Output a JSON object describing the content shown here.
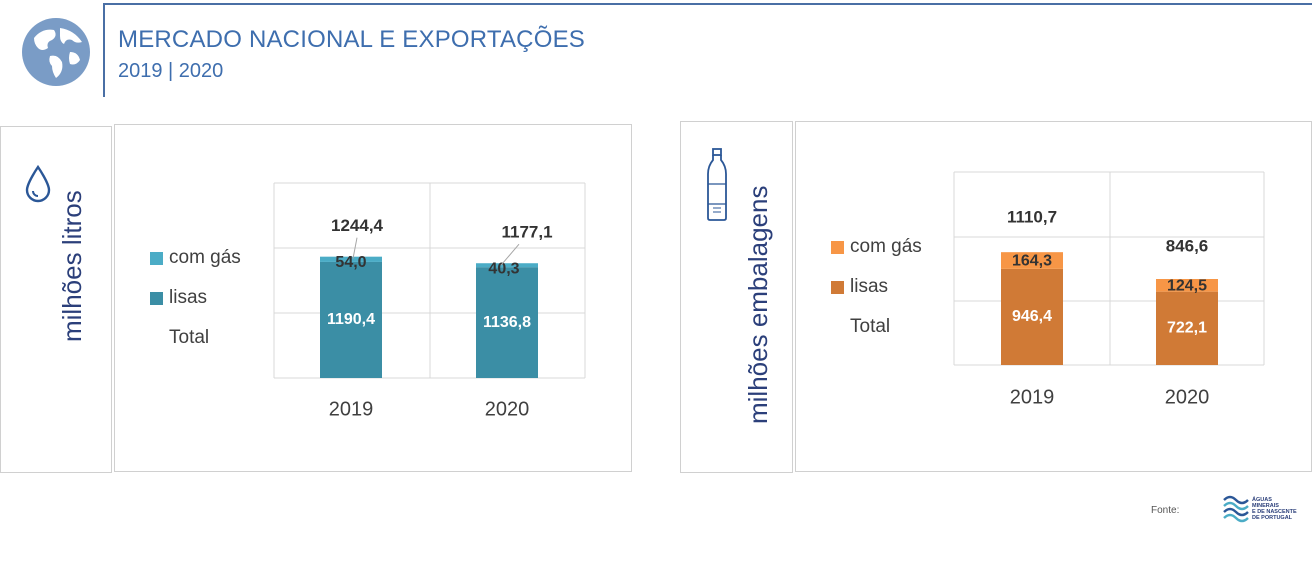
{
  "header": {
    "title": "MERCADO NACIONAL E EXPORTAÇÕES",
    "subtitle": "2019 | 2020"
  },
  "footer": {
    "source_label": "Fonte:",
    "logo_lines": [
      "ÁGUAS",
      "MINERAIS",
      "E DE NASCENTE",
      "DE PORTUGAL"
    ]
  },
  "chart_data": [
    {
      "type": "bar",
      "stacked": true,
      "ylabel": "milhões litros",
      "categories": [
        "2019",
        "2020"
      ],
      "series": [
        {
          "name": "lisas",
          "values": [
            1190.4,
            1136.8
          ],
          "labels": [
            "1190,4",
            "1136,8"
          ],
          "color": "#3b8ea5"
        },
        {
          "name": "com gás",
          "values": [
            54.0,
            40.3
          ],
          "labels": [
            "54,0",
            "40,3"
          ],
          "color": "#4bacc6"
        }
      ],
      "totals": [
        1244.4,
        1177.1
      ],
      "total_labels": [
        "1244,4",
        "1177,1"
      ],
      "legend": [
        "com gás",
        "lisas",
        "Total"
      ],
      "legend_position": "left",
      "ylim": [
        0,
        2000
      ],
      "grid": true
    },
    {
      "type": "bar",
      "stacked": true,
      "ylabel": "milhões embalagens",
      "categories": [
        "2019",
        "2020"
      ],
      "series": [
        {
          "name": "lisas",
          "values": [
            946.4,
            722.1
          ],
          "labels": [
            "946,4",
            "722,1"
          ],
          "color": "#d07a36"
        },
        {
          "name": "com gás",
          "values": [
            164.3,
            124.5
          ],
          "labels": [
            "164,3",
            "124,5"
          ],
          "color": "#f79646"
        }
      ],
      "totals": [
        1110.7,
        846.6
      ],
      "total_labels": [
        "1110,7",
        "846,6"
      ],
      "legend": [
        "com gás",
        "lisas",
        "Total"
      ],
      "legend_position": "left",
      "ylim": [
        0,
        1900
      ],
      "grid": true
    }
  ]
}
